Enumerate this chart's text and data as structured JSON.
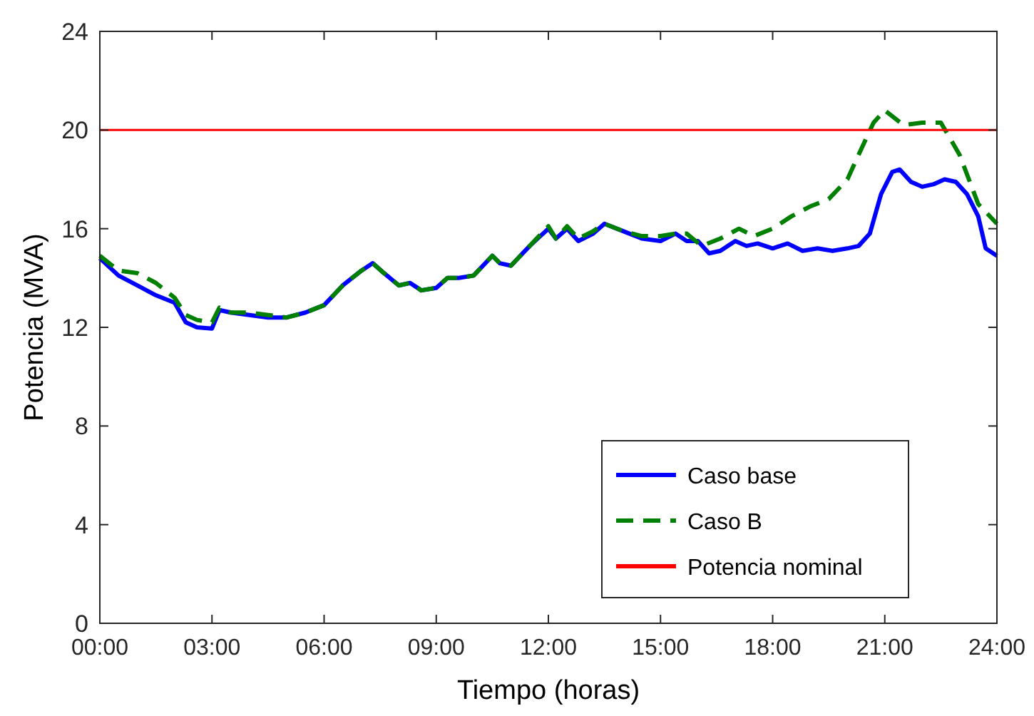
{
  "chart_data": {
    "type": "line",
    "xlabel": "Tiempo (horas)",
    "ylabel": "Potencia (MVA)",
    "xlim": [
      0,
      24
    ],
    "xticks": [
      {
        "value": 0,
        "label": "00:00"
      },
      {
        "value": 3,
        "label": "03:00"
      },
      {
        "value": 6,
        "label": "06:00"
      },
      {
        "value": 9,
        "label": "09:00"
      },
      {
        "value": 12,
        "label": "12:00"
      },
      {
        "value": 15,
        "label": "15:00"
      },
      {
        "value": 18,
        "label": "18:00"
      },
      {
        "value": 21,
        "label": "21:00"
      },
      {
        "value": 24,
        "label": "24:00"
      }
    ],
    "ylim": [
      0,
      24
    ],
    "yticks": [
      0,
      4,
      8,
      12,
      16,
      20,
      24
    ],
    "grid": false,
    "legend": "bottom right",
    "series": [
      {
        "name": "Caso base",
        "color": "#0000ff",
        "line_style": "solid",
        "x": [
          0,
          0.5,
          1,
          1.5,
          2,
          2.3,
          2.6,
          3,
          3.2,
          3.5,
          4,
          4.5,
          5,
          5.5,
          6,
          6.5,
          7,
          7.3,
          7.6,
          8,
          8.3,
          8.6,
          9,
          9.3,
          9.6,
          10,
          10.5,
          10.7,
          11,
          11.5,
          12,
          12.2,
          12.5,
          12.8,
          13.2,
          13.5,
          14,
          14.5,
          15,
          15.4,
          15.7,
          16,
          16.3,
          16.6,
          17,
          17.3,
          17.6,
          18,
          18.4,
          18.8,
          19.2,
          19.6,
          20,
          20.3,
          20.6,
          20.9,
          21.2,
          21.4,
          21.7,
          22,
          22.3,
          22.6,
          22.9,
          23.2,
          23.5,
          23.7,
          24
        ],
        "values": [
          14.8,
          14.1,
          13.7,
          13.3,
          13.0,
          12.2,
          12.0,
          11.95,
          12.7,
          12.6,
          12.5,
          12.4,
          12.4,
          12.6,
          12.9,
          13.7,
          14.3,
          14.6,
          14.2,
          13.7,
          13.8,
          13.5,
          13.6,
          14.0,
          14.0,
          14.1,
          14.9,
          14.6,
          14.5,
          15.3,
          16.0,
          15.6,
          16.0,
          15.5,
          15.8,
          16.2,
          15.9,
          15.6,
          15.5,
          15.8,
          15.5,
          15.5,
          15.0,
          15.1,
          15.5,
          15.3,
          15.4,
          15.2,
          15.4,
          15.1,
          15.2,
          15.1,
          15.2,
          15.3,
          15.8,
          17.4,
          18.3,
          18.4,
          17.9,
          17.7,
          17.8,
          18.0,
          17.9,
          17.4,
          16.5,
          15.2,
          14.9
        ]
      },
      {
        "name": "Caso B",
        "color": "#008000",
        "line_style": "dashed",
        "x": [
          0,
          0.5,
          1,
          1.5,
          2,
          2.3,
          2.6,
          3,
          3.2,
          3.5,
          4,
          4.5,
          5,
          5.5,
          6,
          6.5,
          7,
          7.3,
          7.6,
          8,
          8.3,
          8.6,
          9,
          9.3,
          9.6,
          10,
          10.5,
          10.7,
          11,
          11.5,
          12,
          12.2,
          12.5,
          12.8,
          13.2,
          13.5,
          14,
          14.5,
          15,
          15.4,
          15.7,
          16.1,
          16.6,
          17.1,
          17.5,
          18,
          18.5,
          19,
          19.5,
          20,
          20.3,
          20.7,
          21,
          21.5,
          22,
          22.5,
          23,
          23.5,
          24
        ],
        "values": [
          14.9,
          14.3,
          14.2,
          13.8,
          13.2,
          12.5,
          12.3,
          12.2,
          12.8,
          12.6,
          12.6,
          12.5,
          12.4,
          12.6,
          12.9,
          13.7,
          14.3,
          14.6,
          14.2,
          13.7,
          13.8,
          13.5,
          13.6,
          14.0,
          14.0,
          14.1,
          14.9,
          14.6,
          14.5,
          15.3,
          16.1,
          15.6,
          16.1,
          15.6,
          15.9,
          16.2,
          15.9,
          15.7,
          15.7,
          15.8,
          15.8,
          15.3,
          15.6,
          16.0,
          15.7,
          16.0,
          16.5,
          16.9,
          17.2,
          18.0,
          19.0,
          20.3,
          20.8,
          20.2,
          20.3,
          20.3,
          19.0,
          17.0,
          16.2
        ]
      },
      {
        "name": "Potencia nominal",
        "color": "#ff0000",
        "line_style": "solid",
        "x": [
          0,
          24
        ],
        "values": [
          20,
          20
        ]
      }
    ]
  }
}
